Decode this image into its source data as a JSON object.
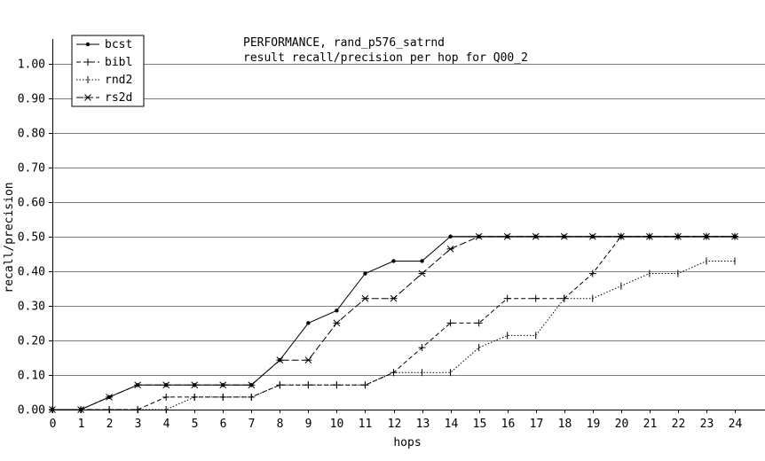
{
  "chart_data": {
    "type": "line",
    "title": "PERFORMANCE, rand_p576_satrnd",
    "subtitle": "result recall/precision per hop for Q00_2",
    "xlabel": "hops",
    "ylabel": "recall/precision",
    "xlim": [
      0,
      24
    ],
    "ylim": [
      0,
      1.05
    ],
    "x_ticks": [
      "0",
      "1",
      "2",
      "3",
      "4",
      "5",
      "6",
      "7",
      "8",
      "9",
      "10",
      "11",
      "12",
      "13",
      "14",
      "15",
      "16",
      "17",
      "18",
      "19",
      "20",
      "21",
      "22",
      "23",
      "24"
    ],
    "y_ticks": [
      "0.00",
      "0.10",
      "0.20",
      "0.30",
      "0.40",
      "0.50",
      "0.60",
      "0.70",
      "0.80",
      "0.90",
      "1.00"
    ],
    "grid": true,
    "legend_position": "top-left",
    "x": [
      0,
      1,
      2,
      3,
      4,
      5,
      6,
      7,
      8,
      9,
      10,
      11,
      12,
      13,
      14,
      15,
      16,
      17,
      18,
      19,
      20,
      21,
      22,
      23,
      24
    ],
    "series": [
      {
        "name": "bcst",
        "marker": "dot",
        "dash": "solid",
        "values": [
          0,
          0,
          0.036,
          0.071,
          0.071,
          0.071,
          0.071,
          0.071,
          0.143,
          0.25,
          0.286,
          0.393,
          0.429,
          0.429,
          0.5,
          0.5,
          0.5,
          0.5,
          0.5,
          0.5,
          0.5,
          0.5,
          0.5,
          0.5,
          0.5
        ]
      },
      {
        "name": "bibl",
        "marker": "plus",
        "dash": "dashed",
        "values": [
          0,
          0,
          0,
          0,
          0.036,
          0.036,
          0.036,
          0.036,
          0.071,
          0.071,
          0.071,
          0.071,
          0.107,
          0.179,
          0.25,
          0.25,
          0.321,
          0.321,
          0.321,
          0.393,
          0.5,
          0.5,
          0.5,
          0.5,
          0.5
        ]
      },
      {
        "name": "rnd2",
        "marker": "vtick",
        "dash": "dotted",
        "values": [
          0,
          0,
          0,
          0,
          0,
          0.036,
          0.036,
          0.036,
          0.071,
          0.071,
          0.071,
          0.071,
          0.107,
          0.107,
          0.107,
          0.179,
          0.214,
          0.214,
          0.321,
          0.321,
          0.357,
          0.393,
          0.393,
          0.429,
          0.429
        ]
      },
      {
        "name": "rs2d",
        "marker": "x",
        "dash": "longdash",
        "values": [
          0,
          0,
          0.036,
          0.071,
          0.071,
          0.071,
          0.071,
          0.071,
          0.143,
          0.143,
          0.25,
          0.321,
          0.321,
          0.393,
          0.464,
          0.5,
          0.5,
          0.5,
          0.5,
          0.5,
          0.5,
          0.5,
          0.5,
          0.5,
          0.5
        ]
      }
    ]
  }
}
